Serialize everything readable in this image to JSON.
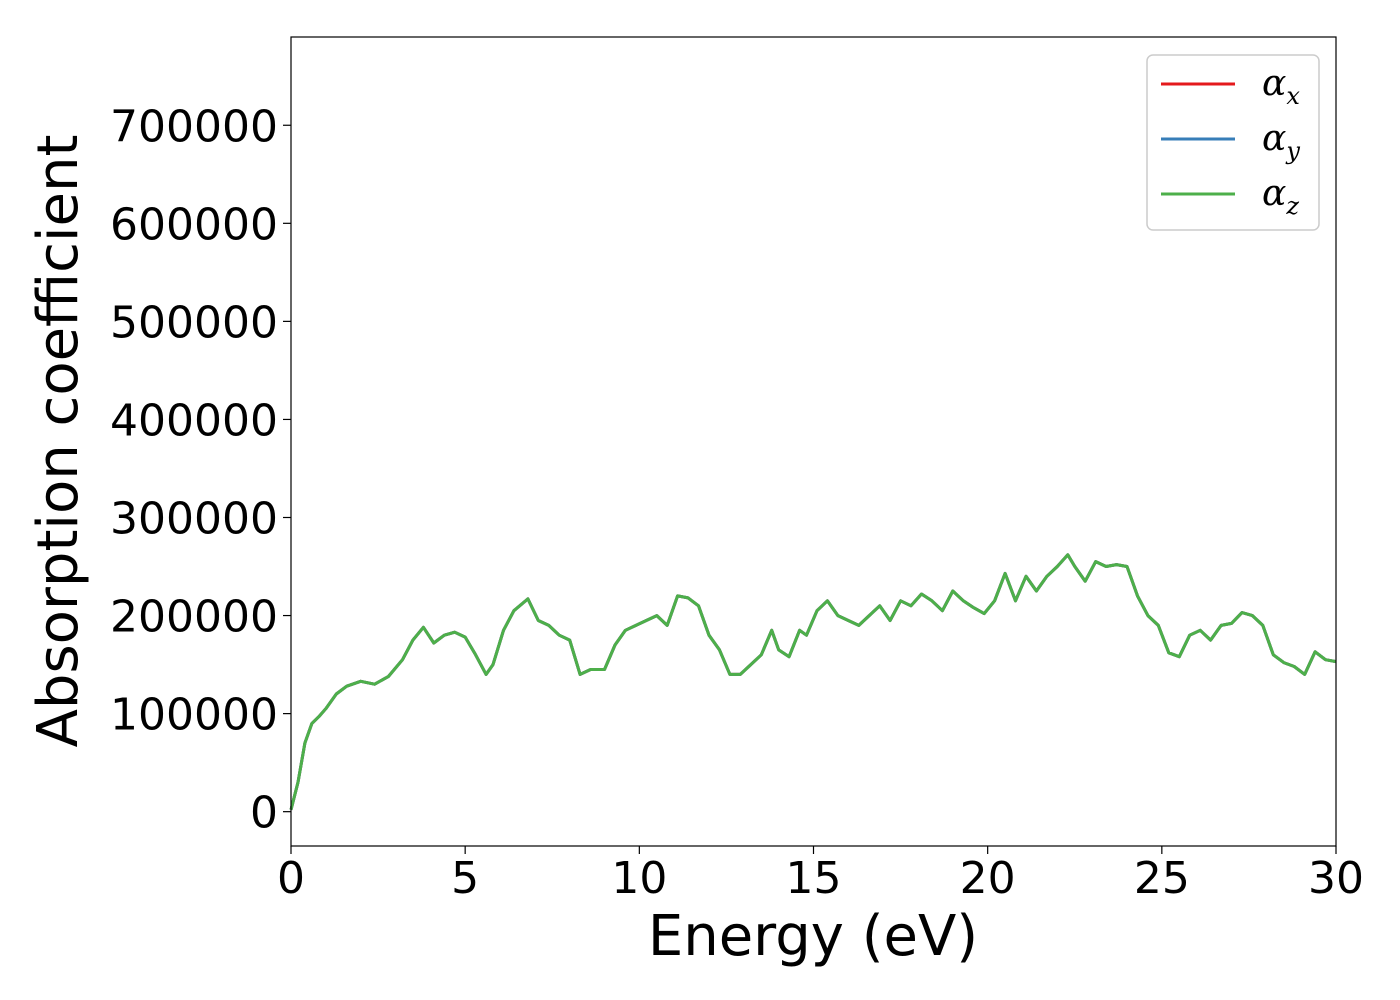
{
  "chart_data": {
    "type": "line",
    "title": "",
    "xlabel": "Energy (eV)",
    "ylabel": "Absorption coefficient",
    "xlim": [
      0,
      30
    ],
    "ylim": [
      -35000,
      790000
    ],
    "xticks": [
      0,
      5,
      10,
      15,
      20,
      25,
      30
    ],
    "yticks": [
      0,
      100000,
      200000,
      300000,
      400000,
      500000,
      600000,
      700000
    ],
    "xtick_labels": [
      "0",
      "5",
      "10",
      "15",
      "20",
      "25",
      "30"
    ],
    "ytick_labels": [
      "0",
      "100000",
      "200000",
      "300000",
      "400000",
      "500000",
      "600000",
      "700000"
    ],
    "grid": false,
    "legend": "top-right",
    "x": [
      0,
      0.2,
      0.4,
      0.6,
      0.8,
      1.0,
      1.3,
      1.6,
      2.0,
      2.4,
      2.8,
      3.2,
      3.5,
      3.8,
      4.1,
      4.4,
      4.7,
      5.0,
      5.3,
      5.6,
      5.8,
      6.1,
      6.4,
      6.8,
      7.1,
      7.4,
      7.7,
      8.0,
      8.3,
      8.6,
      9.0,
      9.3,
      9.6,
      9.9,
      10.2,
      10.5,
      10.8,
      11.1,
      11.4,
      11.7,
      12.0,
      12.3,
      12.6,
      12.9,
      13.2,
      13.5,
      13.8,
      14.0,
      14.3,
      14.6,
      14.8,
      15.1,
      15.4,
      15.7,
      16.0,
      16.3,
      16.6,
      16.9,
      17.2,
      17.5,
      17.8,
      18.1,
      18.4,
      18.7,
      19.0,
      19.3,
      19.6,
      19.9,
      20.2,
      20.5,
      20.8,
      21.1,
      21.4,
      21.7,
      22.0,
      22.3,
      22.5,
      22.8,
      23.1,
      23.4,
      23.7,
      24.0,
      24.3,
      24.6,
      24.9,
      25.2,
      25.5,
      25.8,
      26.1,
      26.4,
      26.7,
      27.0,
      27.3,
      27.6,
      27.9,
      28.2,
      28.5,
      28.8,
      29.1,
      29.4,
      29.7,
      30.0
    ],
    "series": [
      {
        "name": "α_x",
        "color": "#e41a1c",
        "values": [
          2000,
          30000,
          70000,
          90000,
          97000,
          105000,
          120000,
          128000,
          133000,
          130000,
          138000,
          155000,
          175000,
          188000,
          172000,
          180000,
          183000,
          178000,
          160000,
          140000,
          150000,
          185000,
          205000,
          217000,
          195000,
          190000,
          180000,
          175000,
          140000,
          145000,
          145000,
          170000,
          185000,
          190000,
          195000,
          200000,
          190000,
          220000,
          218000,
          210000,
          180000,
          165000,
          140000,
          140000,
          150000,
          160000,
          185000,
          165000,
          158000,
          185000,
          180000,
          205000,
          215000,
          200000,
          195000,
          190000,
          200000,
          210000,
          195000,
          215000,
          210000,
          222000,
          215000,
          205000,
          225000,
          215000,
          208000,
          202000,
          215000,
          243000,
          215000,
          240000,
          225000,
          240000,
          250000,
          262000,
          250000,
          235000,
          255000,
          250000,
          252000,
          250000,
          220000,
          200000,
          190000,
          162000,
          158000,
          180000,
          185000,
          175000,
          190000,
          192000,
          203000,
          200000,
          190000,
          160000,
          152000,
          148000,
          140000,
          163000,
          155000,
          153000
        ]
      },
      {
        "name": "α_y",
        "color": "#377eb8",
        "values": [
          2000,
          30000,
          70000,
          90000,
          97000,
          105000,
          120000,
          128000,
          133000,
          130000,
          138000,
          155000,
          175000,
          188000,
          172000,
          180000,
          183000,
          178000,
          160000,
          140000,
          150000,
          185000,
          205000,
          217000,
          195000,
          190000,
          180000,
          175000,
          140000,
          145000,
          145000,
          170000,
          185000,
          190000,
          195000,
          200000,
          190000,
          220000,
          218000,
          210000,
          180000,
          165000,
          140000,
          140000,
          150000,
          160000,
          185000,
          165000,
          158000,
          185000,
          180000,
          205000,
          215000,
          200000,
          195000,
          190000,
          200000,
          210000,
          195000,
          215000,
          210000,
          222000,
          215000,
          205000,
          225000,
          215000,
          208000,
          202000,
          215000,
          243000,
          215000,
          240000,
          225000,
          240000,
          250000,
          262000,
          250000,
          235000,
          255000,
          250000,
          252000,
          250000,
          220000,
          200000,
          190000,
          162000,
          158000,
          180000,
          185000,
          175000,
          190000,
          192000,
          203000,
          200000,
          190000,
          160000,
          152000,
          148000,
          140000,
          163000,
          155000,
          153000
        ]
      },
      {
        "name": "α_z",
        "color": "#4daf4a",
        "values": [
          2000,
          30000,
          70000,
          90000,
          97000,
          105000,
          120000,
          128000,
          133000,
          130000,
          138000,
          155000,
          175000,
          188000,
          172000,
          180000,
          183000,
          178000,
          160000,
          140000,
          150000,
          185000,
          205000,
          217000,
          195000,
          190000,
          180000,
          175000,
          140000,
          145000,
          145000,
          170000,
          185000,
          190000,
          195000,
          200000,
          190000,
          220000,
          218000,
          210000,
          180000,
          165000,
          140000,
          140000,
          150000,
          160000,
          185000,
          165000,
          158000,
          185000,
          180000,
          205000,
          215000,
          200000,
          195000,
          190000,
          200000,
          210000,
          195000,
          215000,
          210000,
          222000,
          215000,
          205000,
          225000,
          215000,
          208000,
          202000,
          215000,
          243000,
          215000,
          240000,
          225000,
          240000,
          250000,
          262000,
          250000,
          235000,
          255000,
          250000,
          252000,
          250000,
          220000,
          200000,
          190000,
          162000,
          158000,
          180000,
          185000,
          175000,
          190000,
          192000,
          203000,
          200000,
          190000,
          160000,
          152000,
          148000,
          140000,
          163000,
          155000,
          153000
        ]
      }
    ]
  }
}
